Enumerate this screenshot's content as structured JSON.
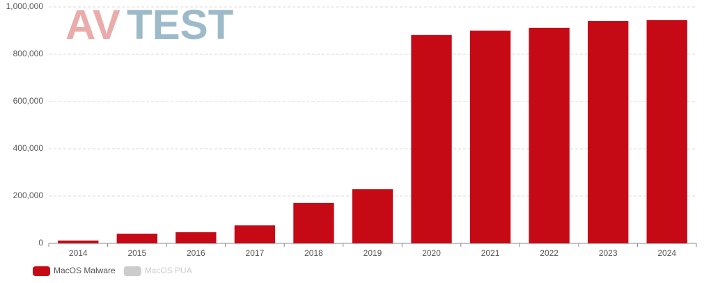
{
  "logo": {
    "left": "AV",
    "right": "TEST"
  },
  "chart_data": {
    "type": "bar",
    "categories": [
      "2014",
      "2015",
      "2016",
      "2017",
      "2018",
      "2019",
      "2020",
      "2021",
      "2022",
      "2023",
      "2024"
    ],
    "series": [
      {
        "name": "MacOS Malware",
        "color": "#c50a16",
        "values": [
          12000,
          41000,
          47000,
          76000,
          171000,
          229000,
          882000,
          900000,
          912000,
          941000,
          944000
        ]
      },
      {
        "name": "MacOS PUA",
        "color": "#cccccc",
        "hidden": true
      }
    ],
    "ylim": [
      0,
      1000000
    ],
    "yticks": [
      0,
      {
        "value": 200000,
        "label": "200,000"
      },
      {
        "value": 400000,
        "label": "400,000"
      },
      {
        "value": 600000,
        "label": "600,000"
      },
      {
        "value": 800000,
        "label": "800,000"
      },
      {
        "value": 1000000,
        "label": "1,000,000"
      }
    ],
    "grid": true
  }
}
